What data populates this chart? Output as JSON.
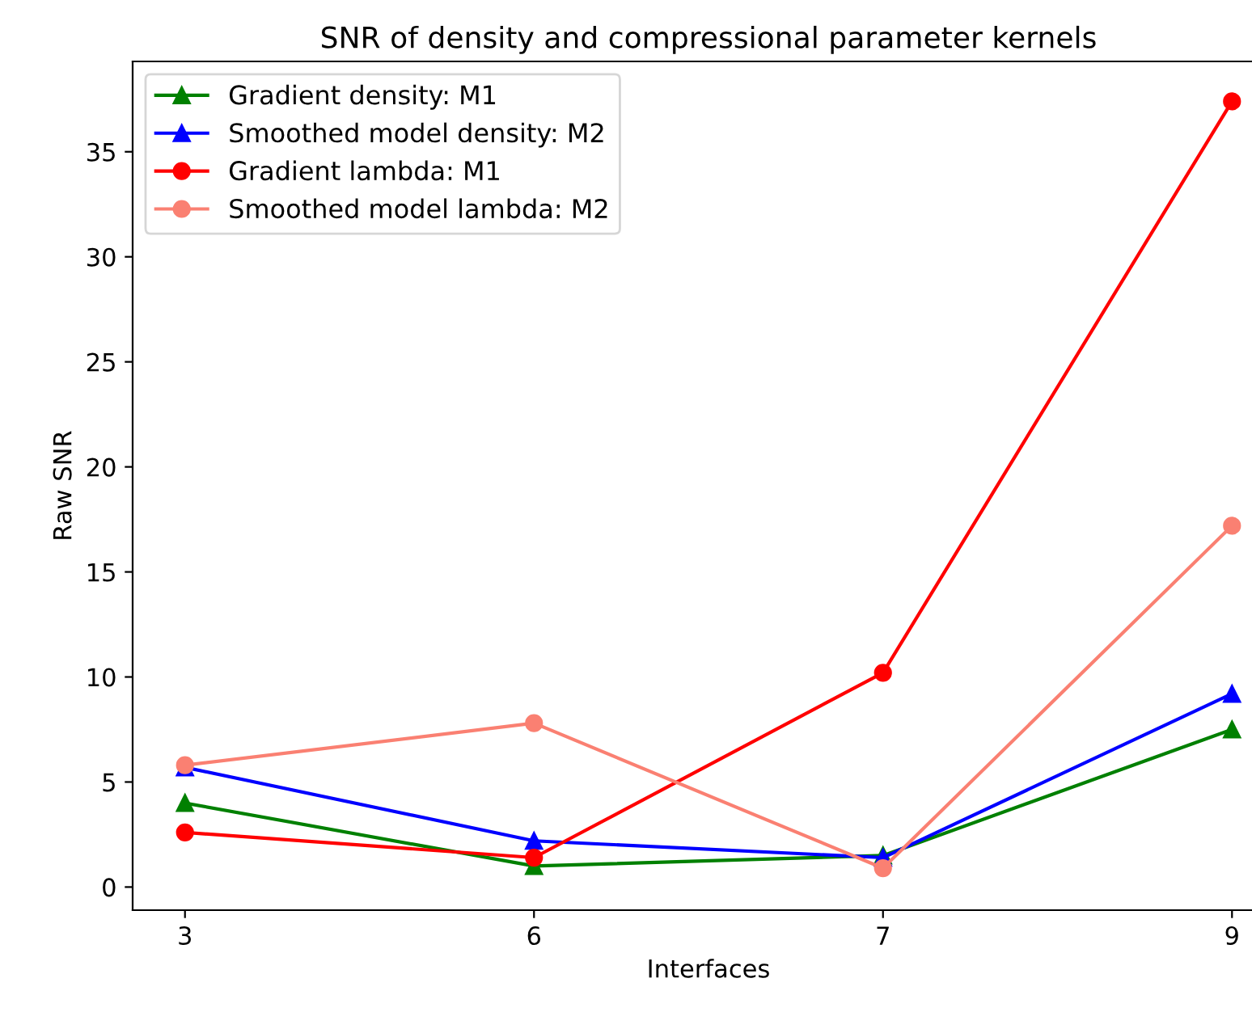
{
  "chart_data": {
    "type": "line",
    "title": "SNR of density and compressional parameter kernels",
    "xlabel": "Interfaces",
    "ylabel": "Raw SNR",
    "categories": [
      "3",
      "6",
      "7",
      "9"
    ],
    "series": [
      {
        "name": "Gradient density: M1",
        "color": "#008000",
        "marker": "triangle",
        "values": [
          4.0,
          1.0,
          1.5,
          7.5
        ]
      },
      {
        "name": "Smoothed model density: M2",
        "color": "#0000ff",
        "marker": "triangle",
        "values": [
          5.7,
          2.2,
          1.4,
          9.2
        ]
      },
      {
        "name": "Gradient lambda: M1",
        "color": "#ff0000",
        "marker": "circle",
        "values": [
          2.6,
          1.4,
          10.2,
          37.4
        ]
      },
      {
        "name": "Smoothed model lambda: M2",
        "color": "#fa8072",
        "marker": "circle",
        "values": [
          5.8,
          7.8,
          0.9,
          17.2
        ]
      }
    ],
    "ylim": [
      -1.1,
      39.3
    ],
    "yticks": [
      0,
      5,
      10,
      15,
      20,
      25,
      30,
      35
    ],
    "grid": false,
    "legend": "top left",
    "line_style": "solid"
  }
}
